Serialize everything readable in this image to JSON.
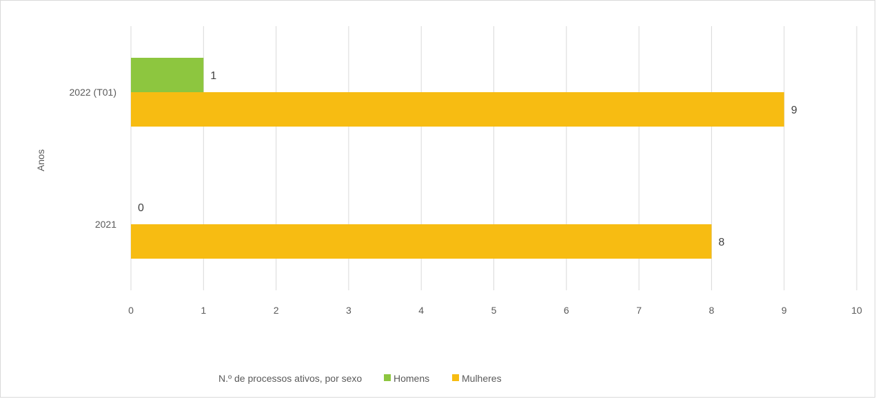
{
  "chart_data": {
    "type": "bar",
    "orientation": "horizontal",
    "categories": [
      "2021",
      "2022 (T01)"
    ],
    "series": [
      {
        "name": "Homens",
        "values": [
          0,
          1
        ],
        "color": "#8dc63f"
      },
      {
        "name": "Mulheres",
        "values": [
          8,
          9
        ],
        "color": "#f7bc12"
      }
    ],
    "xlim": [
      0,
      10
    ],
    "x_ticks": [
      "0",
      "1",
      "2",
      "3",
      "4",
      "5",
      "6",
      "7",
      "8",
      "9",
      "10"
    ],
    "xlabel": "",
    "ylabel": "Anos",
    "legend_title": "N.º de processos ativos, por sexo",
    "legend_position": "bottom",
    "grid": true,
    "gridline_color": "#d9d9d9",
    "label_color": "#595959"
  }
}
